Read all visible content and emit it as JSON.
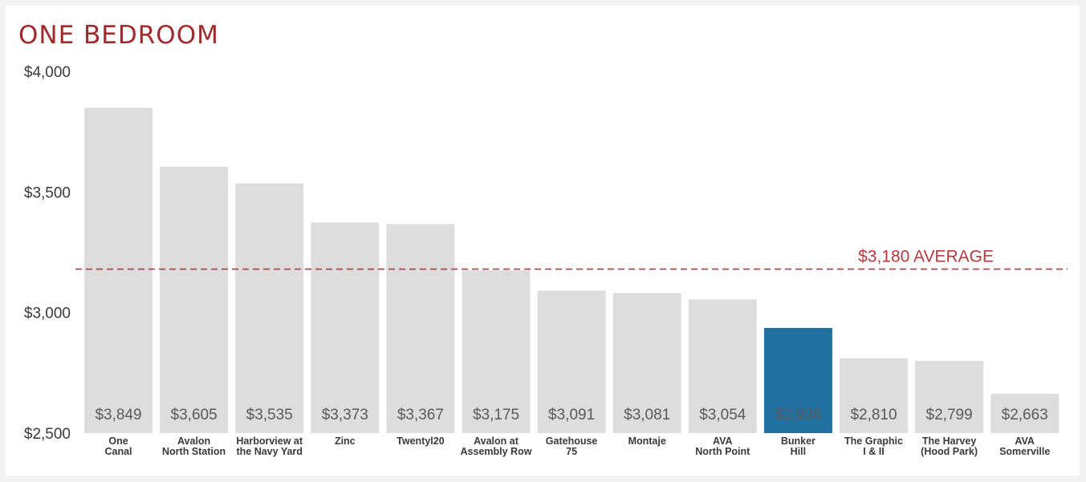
{
  "colors": {
    "title": "#a12a2e",
    "bar": "#dddddd",
    "highlight": "#2371a1",
    "average": "#b8393c",
    "axis_text": "#3a3a3a",
    "value_text": "#5a5a5a",
    "highlight_value_text": "#ffffff"
  },
  "chart_data": {
    "type": "bar",
    "title": "ONE BEDROOM",
    "xlabel": "",
    "ylabel": "",
    "ylim": [
      2500,
      4000
    ],
    "yticks": [
      2500,
      3000,
      3500,
      4000
    ],
    "ytick_labels": [
      "$2,500",
      "$3,000",
      "$3,500",
      "$4,000"
    ],
    "grid": false,
    "legend": "none",
    "categories": [
      [
        "One",
        "Canal"
      ],
      [
        "Avalon",
        "North Station"
      ],
      [
        "Harborview at",
        "the Navy Yard"
      ],
      [
        "Zinc"
      ],
      [
        "Twentyl20"
      ],
      [
        "Avalon at",
        "Assembly Row"
      ],
      [
        "Gatehouse",
        "75"
      ],
      [
        "Montaje"
      ],
      [
        "AVA",
        "North Point"
      ],
      [
        "Bunker",
        "Hill"
      ],
      [
        "The Graphic",
        "I & II"
      ],
      [
        "The Harvey",
        "(Hood Park)"
      ],
      [
        "AVA",
        "Somerville"
      ]
    ],
    "values": [
      3849,
      3605,
      3535,
      3373,
      3367,
      3175,
      3091,
      3081,
      3054,
      2936,
      2810,
      2799,
      2663
    ],
    "value_labels": [
      "$3,849",
      "$3,605",
      "$3,535",
      "$3,373",
      "$3,367",
      "$3,175",
      "$3,091",
      "$3,081",
      "$3,054",
      "$2,936",
      "$2,810",
      "$2,799",
      "$2,663"
    ],
    "highlight_index": 9,
    "average": {
      "value": 3180,
      "label": "$3,180 AVERAGE"
    }
  }
}
